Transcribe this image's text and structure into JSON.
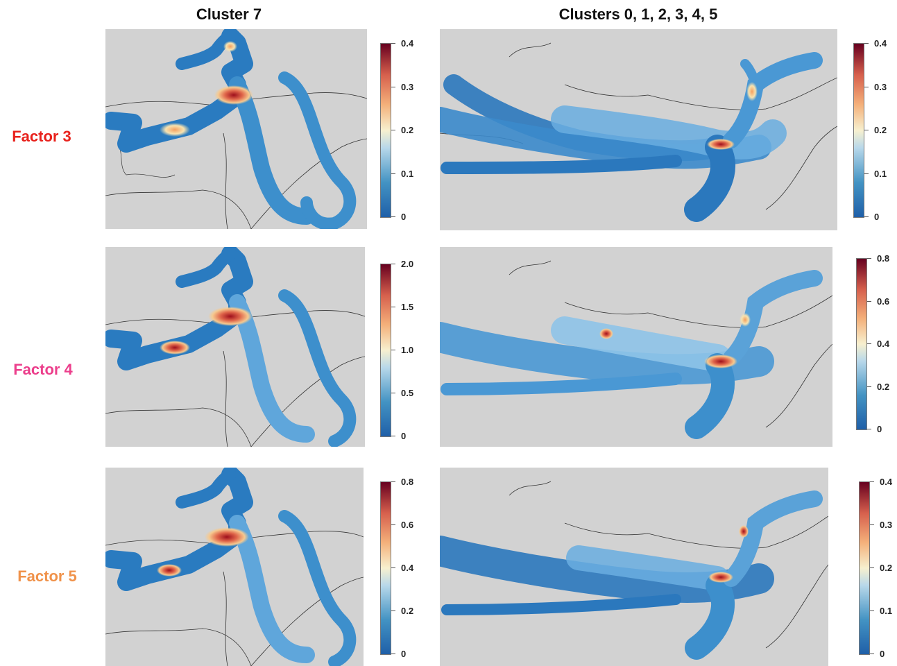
{
  "columns": [
    {
      "title": "Cluster 7"
    },
    {
      "title": "Clusters 0, 1, 2, 3, 4, 5"
    }
  ],
  "rows": [
    {
      "label": "Factor 3",
      "color": "#e8211c"
    },
    {
      "label": "Factor 4",
      "color": "#ec3f8c"
    },
    {
      "label": "Factor 5",
      "color": "#f0924a"
    }
  ],
  "colorbars": [
    {
      "ticks": [
        "0.4",
        "0.3",
        "0.2",
        "0.1",
        "0"
      ]
    },
    {
      "ticks": [
        "0.4",
        "0.3",
        "0.2",
        "0.1",
        "0"
      ]
    },
    {
      "ticks": [
        "2.0",
        "1.5",
        "1.0",
        "0.5",
        "0"
      ]
    },
    {
      "ticks": [
        "0.8",
        "0.6",
        "0.4",
        "0.2",
        "0"
      ]
    },
    {
      "ticks": [
        "0.8",
        "0.6",
        "0.4",
        "0.2",
        "0"
      ]
    },
    {
      "ticks": [
        "0.4",
        "0.3",
        "0.2",
        "0.1",
        "0"
      ]
    }
  ],
  "colormap": {
    "low": "#2166ac",
    "mid_low": "#67a9cf",
    "mid": "#f7f7f7",
    "mid_high": "#f4a582",
    "high": "#67001f",
    "background": "#d2d2d2"
  }
}
